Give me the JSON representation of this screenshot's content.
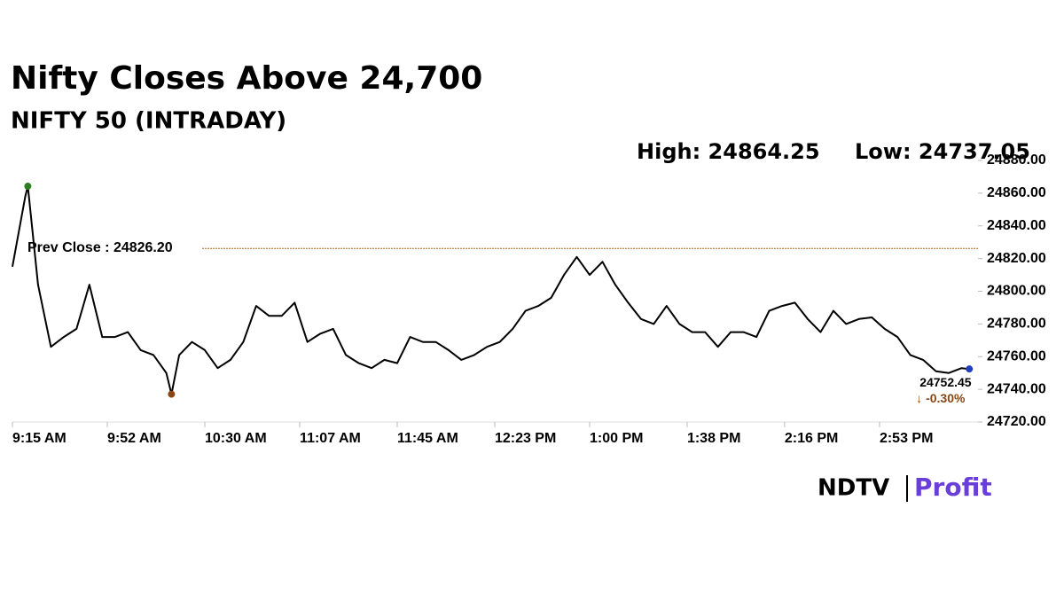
{
  "chart_data": {
    "type": "line",
    "title": "Nifty Closes Above 24,700",
    "subtitle": "NIFTY 50 (INTRADAY)",
    "high": {
      "label": "High:",
      "value": 24864.25,
      "color": "#2e7d1e"
    },
    "low": {
      "label": "Low:",
      "value": 24737.05,
      "color": "#8b4513"
    },
    "prev_close": {
      "label": "Prev Close :",
      "value": 24826.2,
      "value_label": "24826.20",
      "color": "#b5651d"
    },
    "last": {
      "value": 24752.45,
      "change": -0.3,
      "change_label": "-0.30%",
      "color": "#1f3fbf"
    },
    "logo": {
      "left": "NDTV",
      "right": "Profit"
    },
    "color": "#000000",
    "x": [
      "9:15 AM",
      "9:20 AM",
      "9:21 AM",
      "9:25 AM",
      "9:30 AM",
      "9:35 AM",
      "9:40 AM",
      "9:45 AM",
      "9:50 AM",
      "9:55 AM",
      "10:00 AM",
      "10:05 AM",
      "10:10 AM",
      "10:15 AM",
      "10:17 AM",
      "10:20 AM",
      "10:25 AM",
      "10:30 AM",
      "10:35 AM",
      "10:40 AM",
      "10:45 AM",
      "10:50 AM",
      "10:55 AM",
      "11:00 AM",
      "11:05 AM",
      "11:10 AM",
      "11:15 AM",
      "11:20 AM",
      "11:25 AM",
      "11:30 AM",
      "11:35 AM",
      "11:40 AM",
      "11:45 AM",
      "11:50 AM",
      "11:55 AM",
      "12:00 PM",
      "12:05 PM",
      "12:10 PM",
      "12:15 PM",
      "12:20 PM",
      "12:25 PM",
      "12:30 PM",
      "12:35 PM",
      "12:40 PM",
      "12:45 PM",
      "12:50 PM",
      "12:55 PM",
      "1:00 PM",
      "1:05 PM",
      "1:10 PM",
      "1:15 PM",
      "1:20 PM",
      "1:25 PM",
      "1:30 PM",
      "1:35 PM",
      "1:40 PM",
      "1:45 PM",
      "1:50 PM",
      "1:55 PM",
      "2:00 PM",
      "2:05 PM",
      "2:10 PM",
      "2:15 PM",
      "2:20 PM",
      "2:25 PM",
      "2:30 PM",
      "2:35 PM",
      "2:40 PM",
      "2:45 PM",
      "2:50 PM",
      "2:55 PM",
      "3:00 PM",
      "3:05 PM",
      "3:10 PM",
      "3:15 PM",
      "3:20 PM",
      "3:25 PM",
      "3:28 PM"
    ],
    "values": [
      24815,
      24858,
      24864.25,
      24804,
      24766,
      24772,
      24777,
      24804,
      24772,
      24772,
      24775,
      24764,
      24761,
      24750,
      24737.05,
      24761,
      24769,
      24764,
      24753,
      24758,
      24769,
      24791,
      24785,
      24785,
      24793,
      24769,
      24774,
      24777,
      24761,
      24756,
      24753,
      24758,
      24756,
      24772,
      24769,
      24769,
      24764,
      24758,
      24761,
      24766,
      24769,
      24777,
      24788,
      24791,
      24796,
      24810,
      24821,
      24810,
      24818,
      24804,
      24793,
      24783,
      24780,
      24791,
      24780,
      24775,
      24775,
      24766,
      24775,
      24775,
      24772,
      24788,
      24791,
      24793,
      24783,
      24775,
      24788,
      24780,
      24783,
      24784,
      24777,
      24772,
      24761,
      24758,
      24751,
      24750,
      24753,
      24752.45
    ],
    "xlim": [
      "9:15 AM",
      "3:30 PM"
    ],
    "xticks": [
      "9:15 AM",
      "9:52 AM",
      "10:30 AM",
      "11:07 AM",
      "11:45 AM",
      "12:23 PM",
      "1:00 PM",
      "1:38 PM",
      "2:16 PM",
      "2:53 PM"
    ],
    "ylim": [
      24720,
      24880
    ],
    "yticks": [
      {
        "value": 24720,
        "label": "24720.00"
      },
      {
        "value": 24740,
        "label": "24740.00"
      },
      {
        "value": 24760,
        "label": "24760.00"
      },
      {
        "value": 24780,
        "label": "24780.00"
      },
      {
        "value": 24800,
        "label": "24800.00"
      },
      {
        "value": 24820,
        "label": "24820.00"
      },
      {
        "value": 24840,
        "label": "24840.00"
      },
      {
        "value": 24860,
        "label": "24860.00"
      },
      {
        "value": 24880,
        "label": "24880.00"
      }
    ]
  }
}
